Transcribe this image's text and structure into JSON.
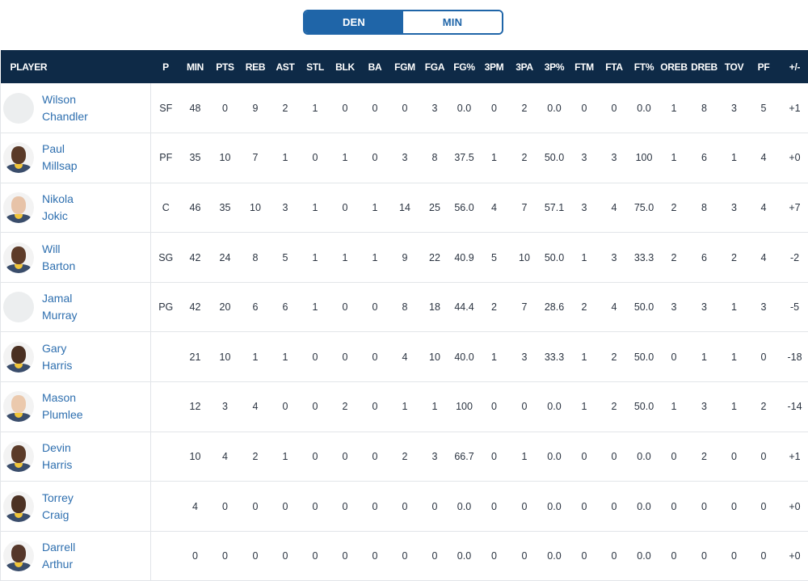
{
  "toggle": {
    "options": [
      {
        "label": "DEN",
        "active": true
      },
      {
        "label": "MIN",
        "active": false
      }
    ],
    "accent": "#1f65a8"
  },
  "header_bg": "#0e2a47",
  "columns": [
    "PLAYER",
    "P",
    "MIN",
    "PTS",
    "REB",
    "AST",
    "STL",
    "BLK",
    "BA",
    "FGM",
    "FGA",
    "FG%",
    "3PM",
    "3PA",
    "3P%",
    "FTM",
    "FTA",
    "FT%",
    "OREB",
    "DREB",
    "TOV",
    "PF",
    "+/-"
  ],
  "players": [
    {
      "first": "Wilson",
      "last": "Chandler",
      "avatar": "empty",
      "skin": "",
      "stats": [
        "SF",
        "48",
        "0",
        "9",
        "2",
        "1",
        "0",
        "0",
        "0",
        "3",
        "0.0",
        "0",
        "2",
        "0.0",
        "0",
        "0",
        "0.0",
        "1",
        "8",
        "3",
        "5",
        "+1"
      ]
    },
    {
      "first": "Paul",
      "last": "Millsap",
      "avatar": "photo",
      "skin": "#5a3a28",
      "stats": [
        "PF",
        "35",
        "10",
        "7",
        "1",
        "0",
        "1",
        "0",
        "3",
        "8",
        "37.5",
        "1",
        "2",
        "50.0",
        "3",
        "3",
        "100",
        "1",
        "6",
        "1",
        "4",
        "+0"
      ]
    },
    {
      "first": "Nikola",
      "last": "Jokic",
      "avatar": "photo",
      "skin": "#e7c3a8",
      "stats": [
        "C",
        "46",
        "35",
        "10",
        "3",
        "1",
        "0",
        "1",
        "14",
        "25",
        "56.0",
        "4",
        "7",
        "57.1",
        "3",
        "4",
        "75.0",
        "2",
        "8",
        "3",
        "4",
        "+7"
      ]
    },
    {
      "first": "Will",
      "last": "Barton",
      "avatar": "photo",
      "skin": "#5e3c2a",
      "stats": [
        "SG",
        "42",
        "24",
        "8",
        "5",
        "1",
        "1",
        "1",
        "9",
        "22",
        "40.9",
        "5",
        "10",
        "50.0",
        "1",
        "3",
        "33.3",
        "2",
        "6",
        "2",
        "4",
        "-2"
      ]
    },
    {
      "first": "Jamal",
      "last": "Murray",
      "avatar": "empty",
      "skin": "",
      "stats": [
        "PG",
        "42",
        "20",
        "6",
        "6",
        "1",
        "0",
        "0",
        "8",
        "18",
        "44.4",
        "2",
        "7",
        "28.6",
        "2",
        "4",
        "50.0",
        "3",
        "3",
        "1",
        "3",
        "-5"
      ]
    },
    {
      "first": "Gary",
      "last": "Harris",
      "avatar": "photo",
      "skin": "#4a3022",
      "stats": [
        "",
        "21",
        "10",
        "1",
        "1",
        "0",
        "0",
        "0",
        "4",
        "10",
        "40.0",
        "1",
        "3",
        "33.3",
        "1",
        "2",
        "50.0",
        "0",
        "1",
        "1",
        "0",
        "-18"
      ]
    },
    {
      "first": "Mason",
      "last": "Plumlee",
      "avatar": "photo",
      "skin": "#ebc9ad",
      "stats": [
        "",
        "12",
        "3",
        "4",
        "0",
        "0",
        "2",
        "0",
        "1",
        "1",
        "100",
        "0",
        "0",
        "0.0",
        "1",
        "2",
        "50.0",
        "1",
        "3",
        "1",
        "2",
        "-14"
      ]
    },
    {
      "first": "Devin",
      "last": "Harris",
      "avatar": "photo",
      "skin": "#5b3b29",
      "stats": [
        "",
        "10",
        "4",
        "2",
        "1",
        "0",
        "0",
        "0",
        "2",
        "3",
        "66.7",
        "0",
        "1",
        "0.0",
        "0",
        "0",
        "0.0",
        "0",
        "2",
        "0",
        "0",
        "+1"
      ]
    },
    {
      "first": "Torrey",
      "last": "Craig",
      "avatar": "photo",
      "skin": "#4c3224",
      "stats": [
        "",
        "4",
        "0",
        "0",
        "0",
        "0",
        "0",
        "0",
        "0",
        "0",
        "0.0",
        "0",
        "0",
        "0.0",
        "0",
        "0",
        "0.0",
        "0",
        "0",
        "0",
        "0",
        "+0"
      ]
    },
    {
      "first": "Darrell",
      "last": "Arthur",
      "avatar": "photo",
      "skin": "#55372a",
      "stats": [
        "",
        "0",
        "0",
        "0",
        "0",
        "0",
        "0",
        "0",
        "0",
        "0",
        "0.0",
        "0",
        "0",
        "0.0",
        "0",
        "0",
        "0.0",
        "0",
        "0",
        "0",
        "0",
        "+0"
      ]
    }
  ]
}
